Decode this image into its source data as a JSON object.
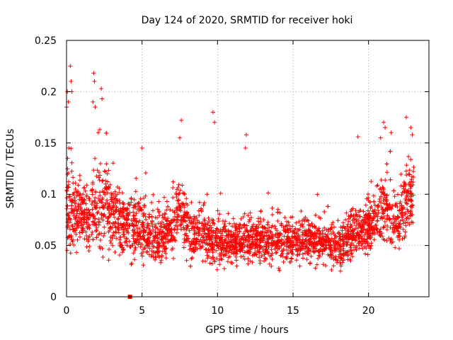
{
  "chart_data": {
    "type": "scatter",
    "title": "Day 124 of 2020, SRMTID for receiver hoki",
    "xlabel": "GPS time / hours",
    "ylabel": "SRMTID / TECUs",
    "xlim": [
      0,
      24
    ],
    "ylim": [
      0,
      0.25
    ],
    "x_ticks": [
      0,
      5,
      10,
      15,
      20
    ],
    "x_tick_labels": [
      "0",
      "5",
      "10",
      "15",
      "20"
    ],
    "y_ticks": [
      0,
      0.05,
      0.1,
      0.15,
      0.2,
      0.25
    ],
    "y_tick_labels": [
      "0",
      "0.05",
      "0.1",
      "0.15",
      "0.2",
      "0.25"
    ],
    "grid": true,
    "marker": "plus",
    "color": "#ff0000",
    "zero_mark": {
      "x": 4.2,
      "y": 0
    },
    "profile": {
      "hours": [
        0,
        0.5,
        1,
        1.5,
        2,
        2.5,
        3,
        3.5,
        4,
        4.5,
        5,
        5.5,
        6,
        6.5,
        7,
        7.5,
        8,
        9,
        10,
        11,
        12,
        13,
        14,
        15,
        16,
        17,
        17.5,
        18,
        18.5,
        19,
        19.5,
        20,
        20.5,
        21,
        21.5,
        22,
        22.5,
        23
      ],
      "center": [
        0.085,
        0.082,
        0.08,
        0.082,
        0.088,
        0.09,
        0.082,
        0.075,
        0.07,
        0.07,
        0.066,
        0.06,
        0.058,
        0.06,
        0.065,
        0.085,
        0.065,
        0.06,
        0.055,
        0.053,
        0.055,
        0.055,
        0.056,
        0.055,
        0.055,
        0.053,
        0.05,
        0.05,
        0.055,
        0.06,
        0.065,
        0.068,
        0.078,
        0.09,
        0.075,
        0.07,
        0.09,
        0.1
      ],
      "spread": [
        0.035,
        0.034,
        0.03,
        0.03,
        0.036,
        0.036,
        0.03,
        0.028,
        0.026,
        0.026,
        0.025,
        0.022,
        0.022,
        0.022,
        0.022,
        0.026,
        0.022,
        0.02,
        0.02,
        0.018,
        0.018,
        0.018,
        0.018,
        0.018,
        0.018,
        0.018,
        0.018,
        0.018,
        0.02,
        0.022,
        0.022,
        0.022,
        0.025,
        0.03,
        0.026,
        0.025,
        0.03,
        0.03
      ]
    },
    "points_per_hour": 130,
    "outliers": [
      {
        "x": 0.0,
        "y": 0.185
      },
      {
        "x": 0.05,
        "y": 0.2
      },
      {
        "x": 0.12,
        "y": 0.19
      },
      {
        "x": 0.25,
        "y": 0.225
      },
      {
        "x": 0.3,
        "y": 0.21
      },
      {
        "x": 0.35,
        "y": 0.2
      },
      {
        "x": 0.15,
        "y": 0.145
      },
      {
        "x": 1.8,
        "y": 0.218
      },
      {
        "x": 1.85,
        "y": 0.21
      },
      {
        "x": 1.75,
        "y": 0.19
      },
      {
        "x": 1.9,
        "y": 0.185
      },
      {
        "x": 2.3,
        "y": 0.203
      },
      {
        "x": 2.35,
        "y": 0.193
      },
      {
        "x": 2.1,
        "y": 0.16
      },
      {
        "x": 2.2,
        "y": 0.163
      },
      {
        "x": 9.7,
        "y": 0.18
      },
      {
        "x": 9.8,
        "y": 0.17
      },
      {
        "x": 7.6,
        "y": 0.172
      },
      {
        "x": 7.5,
        "y": 0.155
      },
      {
        "x": 11.9,
        "y": 0.158
      },
      {
        "x": 11.85,
        "y": 0.145
      },
      {
        "x": 5.0,
        "y": 0.145
      },
      {
        "x": 19.3,
        "y": 0.156
      },
      {
        "x": 21.0,
        "y": 0.17
      },
      {
        "x": 21.1,
        "y": 0.165
      },
      {
        "x": 22.5,
        "y": 0.175
      },
      {
        "x": 22.8,
        "y": 0.165
      },
      {
        "x": 22.9,
        "y": 0.158
      },
      {
        "x": 21.5,
        "y": 0.16
      },
      {
        "x": 20.8,
        "y": 0.155
      }
    ]
  }
}
